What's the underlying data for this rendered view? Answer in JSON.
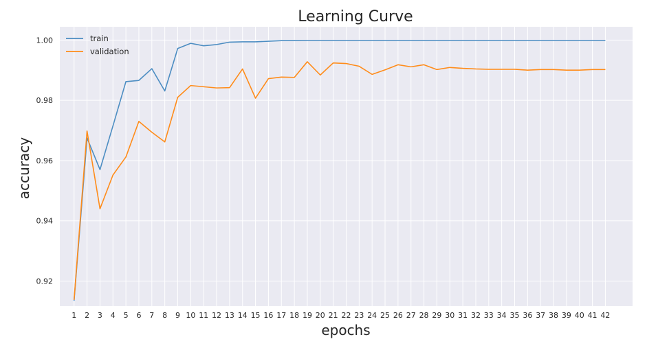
{
  "chart_data": {
    "type": "line",
    "title": "Learning Curve",
    "xlabel": "epochs",
    "ylabel": "accuracy",
    "x": [
      1,
      2,
      3,
      4,
      5,
      6,
      7,
      8,
      9,
      10,
      11,
      12,
      13,
      14,
      15,
      16,
      17,
      18,
      19,
      20,
      21,
      22,
      23,
      24,
      25,
      26,
      27,
      28,
      29,
      30,
      31,
      32,
      33,
      34,
      35,
      36,
      37,
      38,
      39,
      40,
      41,
      42
    ],
    "xticks": [
      "1",
      "2",
      "3",
      "4",
      "5",
      "6",
      "7",
      "8",
      "9",
      "10",
      "11",
      "12",
      "13",
      "14",
      "15",
      "16",
      "17",
      "18",
      "19",
      "20",
      "21",
      "22",
      "23",
      "24",
      "25",
      "26",
      "27",
      "28",
      "29",
      "30",
      "31",
      "32",
      "33",
      "34",
      "35",
      "36",
      "37",
      "38",
      "39",
      "40",
      "41",
      "42"
    ],
    "yticks": [
      "0.92",
      "0.94",
      "0.96",
      "0.98",
      "1.00"
    ],
    "ytick_values": [
      0.92,
      0.94,
      0.96,
      0.98,
      1.0
    ],
    "ylim": [
      0.9117,
      1.0044
    ],
    "xlim": [
      -0.1,
      44.1
    ],
    "grid": true,
    "background": "#eaeaf2",
    "legend_position": "top-left",
    "series": [
      {
        "name": "train",
        "color": "#4c8dc2",
        "values": [
          0.9135,
          0.9675,
          0.957,
          0.9715,
          0.9862,
          0.9866,
          0.9905,
          0.9831,
          0.9972,
          0.9989,
          0.9981,
          0.9985,
          0.9993,
          0.9994,
          0.9994,
          0.9996,
          0.9998,
          0.9998,
          0.9999,
          0.9999,
          0.9999,
          0.9999,
          0.9999,
          0.9999,
          0.9999,
          0.9999,
          0.9999,
          0.9999,
          0.9999,
          0.9999,
          0.9999,
          0.9999,
          0.9999,
          0.9999,
          0.9999,
          0.9999,
          0.9999,
          0.9999,
          0.9999,
          0.9999,
          0.9999,
          0.9999
        ]
      },
      {
        "name": "validation",
        "color": "#ff8c1a",
        "values": [
          0.9138,
          0.9698,
          0.944,
          0.9552,
          0.9612,
          0.973,
          0.9694,
          0.9662,
          0.981,
          0.9849,
          0.9845,
          0.9841,
          0.9842,
          0.9904,
          0.9807,
          0.9872,
          0.9877,
          0.9876,
          0.9928,
          0.9884,
          0.9924,
          0.9922,
          0.9913,
          0.9886,
          0.9901,
          0.9918,
          0.9911,
          0.9918,
          0.9902,
          0.9909,
          0.9906,
          0.9904,
          0.9903,
          0.9903,
          0.9903,
          0.99,
          0.9902,
          0.9902,
          0.99,
          0.99,
          0.9902,
          0.9902
        ]
      }
    ]
  }
}
